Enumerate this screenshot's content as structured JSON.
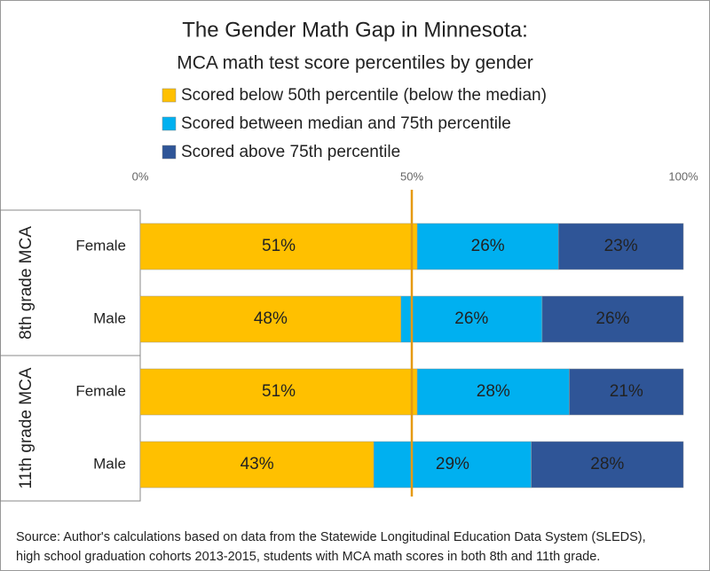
{
  "chart_data": {
    "type": "stacked-bar-horizontal",
    "title": "The Gender Math Gap in Minnesota:",
    "subtitle": "MCA math test score percentiles by gender",
    "groups": [
      {
        "label": "8th grade MCA",
        "categories": [
          "Female",
          "Male"
        ]
      },
      {
        "label": "11th grade MCA",
        "categories": [
          "Female",
          "Male"
        ]
      }
    ],
    "series": [
      {
        "name": "Scored below 50th percentile (below the median)",
        "color": "#ffc000",
        "values": [
          51,
          48,
          51,
          43
        ],
        "value_labels": [
          "51%",
          "48%",
          "51%",
          "43%"
        ]
      },
      {
        "name": "Scored between median and 75th percentile",
        "color": "#00b0f0",
        "values": [
          26,
          26,
          28,
          29
        ],
        "value_labels": [
          "26%",
          "26%",
          "28%",
          "29%"
        ]
      },
      {
        "name": "Scored above 75th percentile",
        "color": "#2f5597",
        "values": [
          23,
          26,
          21,
          28
        ],
        "value_labels": [
          "23%",
          "26%",
          "21%",
          "28%"
        ]
      }
    ],
    "xlim": [
      0,
      100
    ],
    "xticks": [
      {
        "value": 0,
        "label": "0%"
      },
      {
        "value": 50,
        "label": "50%"
      },
      {
        "value": 100,
        "label": "100%"
      }
    ],
    "reference_line": {
      "value": 50,
      "color": "#e69a12"
    },
    "source": [
      "Source: Author's calculations based on data from the Statewide Longitudinal Education Data System (SLEDS),",
      "high school graduation cohorts 2013-2015, students with MCA math scores in both 8th and 11th grade."
    ]
  }
}
